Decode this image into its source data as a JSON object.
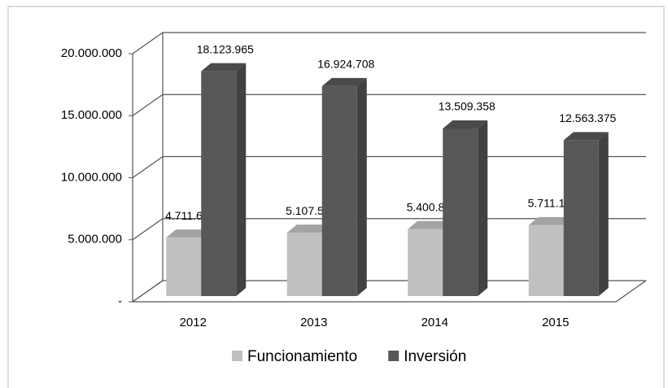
{
  "chart_data": {
    "type": "bar",
    "categories": [
      "2012",
      "2013",
      "2014",
      "2015"
    ],
    "series": [
      {
        "name": "Funcionamiento",
        "color": "#c0c0c0",
        "values": [
          4711668,
          5107514,
          5400850,
          5711199
        ],
        "value_labels": [
          "4.711.668",
          "5.107.514",
          "5.400.850",
          "5.711.199"
        ]
      },
      {
        "name": "Inversión",
        "color": "#575757",
        "values": [
          18123965,
          16924708,
          13509358,
          12563375
        ],
        "value_labels": [
          "18.123.965",
          "16.924.708",
          "13.509.358",
          "12.563.375"
        ]
      }
    ],
    "ylim": [
      0,
      20000000
    ],
    "yticks": [
      {
        "value": 0,
        "label": "-"
      },
      {
        "value": 5000000,
        "label": "5.000.000"
      },
      {
        "value": 10000000,
        "label": "10.000.000"
      },
      {
        "value": 15000000,
        "label": "15.000.000"
      },
      {
        "value": 20000000,
        "label": "20.000.000"
      }
    ],
    "grid": true,
    "legend": "bottom"
  }
}
